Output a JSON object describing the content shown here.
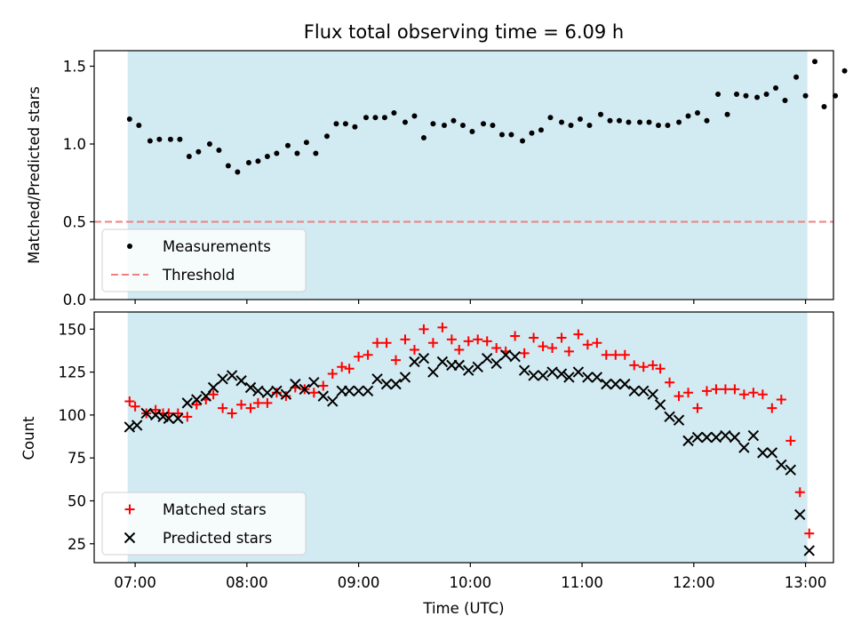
{
  "chart_data": [
    {
      "type": "scatter",
      "title": "Flux total observing time = 6.09 h",
      "ylabel": "Matched/Predicted stars",
      "xlabel": "",
      "xlim": [
        "06:38",
        "13:15"
      ],
      "ylim": [
        0,
        1.6
      ],
      "y_ticks": [
        "0.0",
        "0.5",
        "1.0",
        "1.5"
      ],
      "x_tick_values": [
        "07:00",
        "08:00",
        "09:00",
        "10:00",
        "11:00",
        "12:00",
        "13:00"
      ],
      "shaded_interval": [
        "06:56",
        "13:01"
      ],
      "shade_color": "#add8e6",
      "grid": false,
      "legend_position": "lower-left",
      "threshold": {
        "name": "Threshold",
        "value": 0.5,
        "color": "#f08080",
        "style": "dashed"
      },
      "series": [
        {
          "name": "Measurements",
          "color": "#000000",
          "marker": "dot",
          "points": [
            [
              "06:57",
              1.16
            ],
            [
              "07:02",
              1.12
            ],
            [
              "07:08",
              1.02
            ],
            [
              "07:13",
              1.03
            ],
            [
              "07:19",
              1.03
            ],
            [
              "07:24",
              1.03
            ],
            [
              "07:29",
              0.92
            ],
            [
              "07:34",
              0.95
            ],
            [
              "07:40",
              1.0
            ],
            [
              "07:45",
              0.96
            ],
            [
              "07:50",
              0.86
            ],
            [
              "07:55",
              0.82
            ],
            [
              "08:01",
              0.88
            ],
            [
              "08:06",
              0.89
            ],
            [
              "08:11",
              0.92
            ],
            [
              "08:16",
              0.94
            ],
            [
              "08:22",
              0.99
            ],
            [
              "08:27",
              0.94
            ],
            [
              "08:32",
              1.01
            ],
            [
              "08:37",
              0.94
            ],
            [
              "08:43",
              1.05
            ],
            [
              "08:48",
              1.13
            ],
            [
              "08:53",
              1.13
            ],
            [
              "08:58",
              1.11
            ],
            [
              "09:04",
              1.17
            ],
            [
              "09:09",
              1.17
            ],
            [
              "09:14",
              1.17
            ],
            [
              "09:19",
              1.2
            ],
            [
              "09:25",
              1.14
            ],
            [
              "09:30",
              1.18
            ],
            [
              "09:35",
              1.04
            ],
            [
              "09:40",
              1.13
            ],
            [
              "09:46",
              1.12
            ],
            [
              "09:51",
              1.15
            ],
            [
              "09:56",
              1.12
            ],
            [
              "10:01",
              1.08
            ],
            [
              "10:07",
              1.13
            ],
            [
              "10:12",
              1.12
            ],
            [
              "10:17",
              1.06
            ],
            [
              "10:22",
              1.06
            ],
            [
              "10:28",
              1.02
            ],
            [
              "10:33",
              1.07
            ],
            [
              "10:38",
              1.09
            ],
            [
              "10:43",
              1.17
            ],
            [
              "10:49",
              1.14
            ],
            [
              "10:54",
              1.12
            ],
            [
              "10:59",
              1.16
            ],
            [
              "11:04",
              1.12
            ],
            [
              "11:10",
              1.19
            ],
            [
              "11:15",
              1.15
            ],
            [
              "11:20",
              1.15
            ],
            [
              "11:25",
              1.14
            ],
            [
              "11:31",
              1.14
            ],
            [
              "11:36",
              1.14
            ],
            [
              "11:41",
              1.12
            ],
            [
              "11:46",
              1.12
            ],
            [
              "11:52",
              1.14
            ],
            [
              "11:57",
              1.18
            ],
            [
              "12:02",
              1.2
            ],
            [
              "12:07",
              1.15
            ],
            [
              "12:13",
              1.32
            ],
            [
              "12:18",
              1.19
            ],
            [
              "12:23",
              1.32
            ],
            [
              "12:28",
              1.31
            ],
            [
              "12:34",
              1.3
            ],
            [
              "12:39",
              1.32
            ],
            [
              "12:44",
              1.36
            ],
            [
              "12:49",
              1.28
            ],
            [
              "12:55",
              1.43
            ],
            [
              "13:00",
              1.31
            ],
            [
              "13:05",
              1.53
            ],
            [
              "13:10",
              1.24
            ],
            [
              "13:16",
              1.31
            ],
            [
              "13:21",
              1.47
            ]
          ]
        }
      ]
    },
    {
      "type": "scatter",
      "title": "",
      "ylabel": "Count",
      "xlabel": "Time (UTC)",
      "xlim": [
        "06:38",
        "13:15"
      ],
      "ylim": [
        14,
        160
      ],
      "y_ticks": [
        "25",
        "50",
        "75",
        "100",
        "125",
        "150"
      ],
      "x_ticks": [
        "07:00",
        "08:00",
        "09:00",
        "10:00",
        "11:00",
        "12:00",
        "13:00"
      ],
      "shaded_interval": [
        "06:56",
        "13:01"
      ],
      "shade_color": "#add8e6",
      "grid": false,
      "legend_position": "lower-left",
      "series": [
        {
          "name": "Matched stars",
          "color": "#ff0000",
          "marker": "plus",
          "points": [
            [
              "06:57",
              108
            ],
            [
              "07:00",
              105
            ],
            [
              "07:06",
              101
            ],
            [
              "07:11",
              103
            ],
            [
              "07:15",
              101
            ],
            [
              "07:18",
              101
            ],
            [
              "07:23",
              101
            ],
            [
              "07:28",
              99
            ],
            [
              "07:33",
              106
            ],
            [
              "07:38",
              109
            ],
            [
              "07:42",
              112
            ],
            [
              "07:47",
              104
            ],
            [
              "07:52",
              101
            ],
            [
              "07:57",
              106
            ],
            [
              "08:02",
              104
            ],
            [
              "08:06",
              107
            ],
            [
              "08:11",
              107
            ],
            [
              "08:16",
              113
            ],
            [
              "08:21",
              111
            ],
            [
              "08:26",
              116
            ],
            [
              "08:31",
              115
            ],
            [
              "08:36",
              113
            ],
            [
              "08:41",
              117
            ],
            [
              "08:46",
              124
            ],
            [
              "08:51",
              128
            ],
            [
              "08:55",
              127
            ],
            [
              "09:00",
              134
            ],
            [
              "09:05",
              135
            ],
            [
              "09:10",
              142
            ],
            [
              "09:15",
              142
            ],
            [
              "09:20",
              132
            ],
            [
              "09:25",
              144
            ],
            [
              "09:30",
              138
            ],
            [
              "09:35",
              150
            ],
            [
              "09:40",
              142
            ],
            [
              "09:45",
              151
            ],
            [
              "09:50",
              144
            ],
            [
              "09:54",
              138
            ],
            [
              "09:59",
              143
            ],
            [
              "10:04",
              144
            ],
            [
              "10:09",
              143
            ],
            [
              "10:14",
              139
            ],
            [
              "10:19",
              137
            ],
            [
              "10:24",
              146
            ],
            [
              "10:29",
              136
            ],
            [
              "10:34",
              145
            ],
            [
              "10:39",
              140
            ],
            [
              "10:44",
              139
            ],
            [
              "10:49",
              145
            ],
            [
              "10:53",
              137
            ],
            [
              "10:58",
              147
            ],
            [
              "11:03",
              141
            ],
            [
              "11:08",
              142
            ],
            [
              "11:13",
              135
            ],
            [
              "11:18",
              135
            ],
            [
              "11:23",
              135
            ],
            [
              "11:28",
              129
            ],
            [
              "11:33",
              128
            ],
            [
              "11:38",
              129
            ],
            [
              "11:42",
              127
            ],
            [
              "11:47",
              119
            ],
            [
              "11:52",
              111
            ],
            [
              "11:57",
              113
            ],
            [
              "12:02",
              104
            ],
            [
              "12:07",
              114
            ],
            [
              "12:12",
              115
            ],
            [
              "12:17",
              115
            ],
            [
              "12:22",
              115
            ],
            [
              "12:27",
              112
            ],
            [
              "12:32",
              113
            ],
            [
              "12:37",
              112
            ],
            [
              "12:42",
              104
            ],
            [
              "12:47",
              109
            ],
            [
              "12:52",
              85
            ],
            [
              "12:57",
              55
            ],
            [
              "13:02",
              31
            ]
          ]
        },
        {
          "name": "Predicted stars",
          "color": "#000000",
          "marker": "x",
          "points": [
            [
              "06:57",
              93
            ],
            [
              "07:01",
              94
            ],
            [
              "07:06",
              101
            ],
            [
              "07:11",
              100
            ],
            [
              "07:15",
              99
            ],
            [
              "07:18",
              98
            ],
            [
              "07:23",
              98
            ],
            [
              "07:28",
              107
            ],
            [
              "07:33",
              109
            ],
            [
              "07:38",
              111
            ],
            [
              "07:42",
              116
            ],
            [
              "07:47",
              121
            ],
            [
              "07:52",
              123
            ],
            [
              "07:57",
              120
            ],
            [
              "08:02",
              116
            ],
            [
              "08:06",
              114
            ],
            [
              "08:11",
              113
            ],
            [
              "08:16",
              114
            ],
            [
              "08:21",
              112
            ],
            [
              "08:26",
              118
            ],
            [
              "08:31",
              115
            ],
            [
              "08:36",
              119
            ],
            [
              "08:41",
              111
            ],
            [
              "08:46",
              108
            ],
            [
              "08:51",
              114
            ],
            [
              "08:55",
              114
            ],
            [
              "09:00",
              114
            ],
            [
              "09:05",
              114
            ],
            [
              "09:10",
              121
            ],
            [
              "09:15",
              118
            ],
            [
              "09:20",
              118
            ],
            [
              "09:25",
              122
            ],
            [
              "09:30",
              131
            ],
            [
              "09:35",
              133
            ],
            [
              "09:40",
              125
            ],
            [
              "09:45",
              131
            ],
            [
              "09:50",
              129
            ],
            [
              "09:54",
              129
            ],
            [
              "09:59",
              126
            ],
            [
              "10:04",
              128
            ],
            [
              "10:09",
              133
            ],
            [
              "10:14",
              130
            ],
            [
              "10:19",
              135
            ],
            [
              "10:24",
              134
            ],
            [
              "10:29",
              126
            ],
            [
              "10:34",
              123
            ],
            [
              "10:39",
              123
            ],
            [
              "10:44",
              125
            ],
            [
              "10:49",
              124
            ],
            [
              "10:53",
              122
            ],
            [
              "10:58",
              125
            ],
            [
              "11:03",
              122
            ],
            [
              "11:08",
              122
            ],
            [
              "11:13",
              118
            ],
            [
              "11:18",
              118
            ],
            [
              "11:23",
              118
            ],
            [
              "11:28",
              114
            ],
            [
              "11:33",
              114
            ],
            [
              "11:38",
              112
            ],
            [
              "11:42",
              106
            ],
            [
              "11:47",
              99
            ],
            [
              "11:52",
              97
            ],
            [
              "11:57",
              85
            ],
            [
              "12:02",
              87
            ],
            [
              "12:07",
              87
            ],
            [
              "12:12",
              87
            ],
            [
              "12:17",
              88
            ],
            [
              "12:22",
              87
            ],
            [
              "12:27",
              81
            ],
            [
              "12:32",
              88
            ],
            [
              "12:37",
              78
            ],
            [
              "12:42",
              78
            ],
            [
              "12:47",
              71
            ],
            [
              "12:52",
              68
            ],
            [
              "12:57",
              42
            ],
            [
              "13:02",
              21
            ]
          ]
        }
      ]
    }
  ]
}
